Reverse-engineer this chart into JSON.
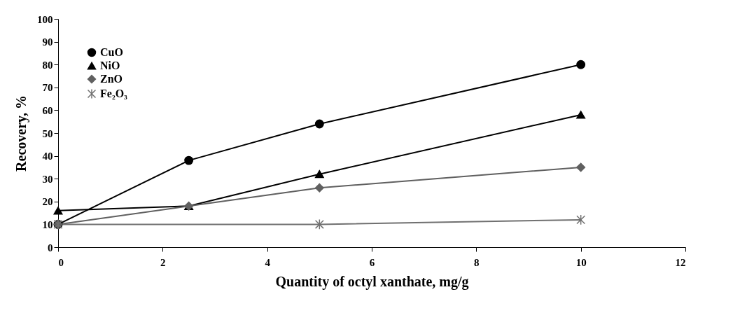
{
  "chart_data": {
    "type": "line",
    "xlabel": "Quantity of octyl xanthate, mg/g",
    "ylabel": "Recovery, %",
    "xlim": [
      0,
      12
    ],
    "xticks": [
      0,
      2,
      4,
      6,
      8,
      10,
      12
    ],
    "ylim": [
      0,
      100
    ],
    "yticks": [
      0,
      10,
      20,
      30,
      40,
      50,
      60,
      70,
      80,
      90,
      100
    ],
    "grid": false,
    "legend": "top left",
    "series": [
      {
        "name": "CuO",
        "color": "#000000",
        "marker": "circle",
        "x": [
          0,
          2.5,
          5,
          10
        ],
        "values": [
          10,
          38,
          54,
          80
        ]
      },
      {
        "name": "NiO",
        "color": "#000000",
        "marker": "triangle",
        "x": [
          0,
          2.5,
          5,
          10
        ],
        "values": [
          16,
          18,
          32,
          58
        ]
      },
      {
        "name": "ZnO",
        "color": "#606060",
        "marker": "diamond",
        "x": [
          0,
          2.5,
          5,
          10
        ],
        "values": [
          10,
          18,
          26,
          35
        ]
      },
      {
        "name": "Fe₂O₃",
        "color": "#707070",
        "marker": "cross",
        "x": [
          0,
          5,
          10
        ],
        "values": [
          10,
          10,
          12
        ]
      }
    ]
  }
}
